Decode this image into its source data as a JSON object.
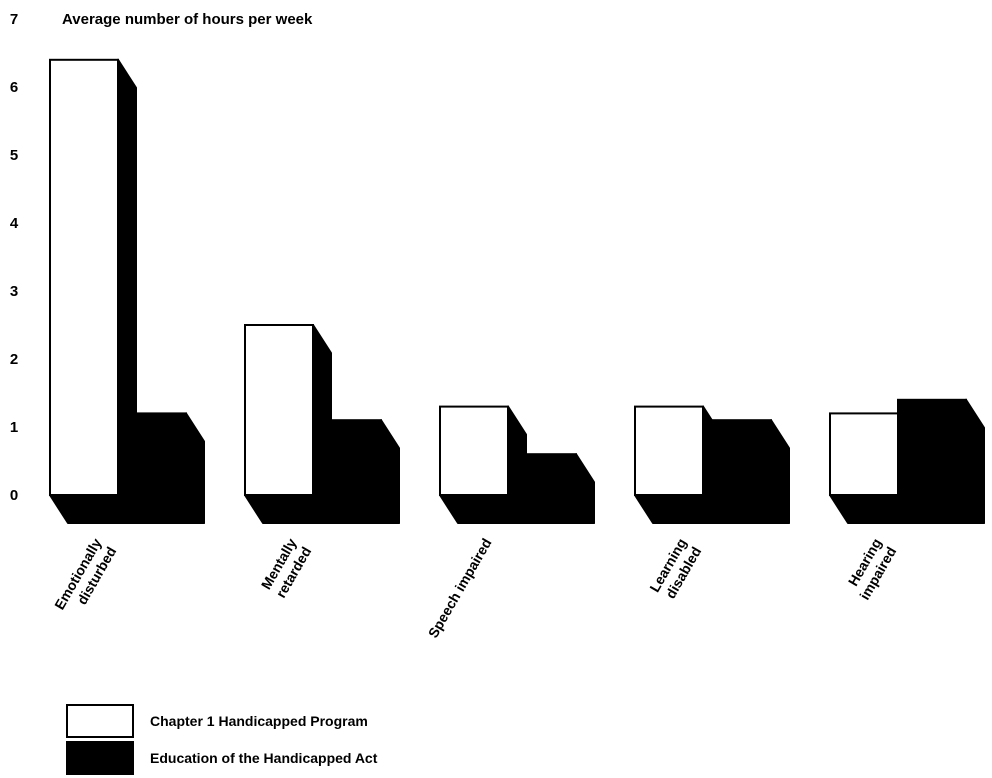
{
  "chart_data": {
    "type": "bar",
    "title": "",
    "ylabel": "Average number of hours per week",
    "xlabel": "",
    "ylim": [
      0,
      7
    ],
    "yticks": [
      0,
      1,
      2,
      3,
      4,
      5,
      6,
      7
    ],
    "categories": [
      [
        "Emotionally",
        "disturbed"
      ],
      [
        "Mentally",
        "retarded"
      ],
      [
        "Speech impaired"
      ],
      [
        "Learning",
        "disabled"
      ],
      [
        "Hearing",
        "impaired"
      ]
    ],
    "series": [
      {
        "name": "Chapter 1 Handicapped Program",
        "values": [
          6.4,
          2.5,
          1.3,
          1.3,
          1.2
        ],
        "color": "#ffffff"
      },
      {
        "name": "Education of the Handicapped Act",
        "values": [
          1.2,
          1.1,
          0.6,
          1.1,
          1.4
        ],
        "color": "#000000"
      }
    ],
    "grid": false,
    "legend": "bottom-left",
    "style": "3d-bars"
  }
}
